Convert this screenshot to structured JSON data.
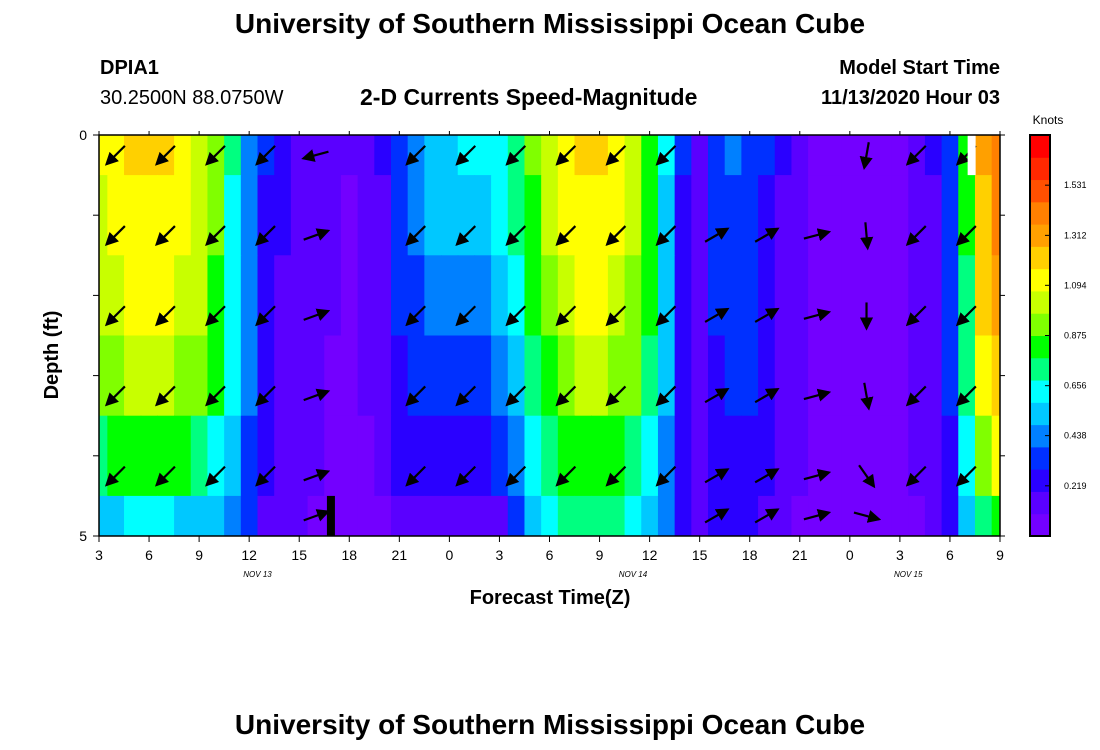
{
  "page": {
    "title_top": "University of Southern Mississippi Ocean Cube",
    "title_bottom": "University of Southern Mississippi Ocean Cube",
    "station_id": "DPIA1",
    "coordinates": "30.2500N 88.0750W",
    "subtitle": "2-D Currents Speed-Magnitude",
    "model_start_label": "Model Start Time",
    "model_start_value": "11/13/2020 Hour 03"
  },
  "chart_data": {
    "type": "heatmap",
    "title": "2-D Currents Speed-Magnitude",
    "xlabel": "Forecast Time(Z)",
    "ylabel": "Depth (ft)",
    "x_range_hours": [
      0,
      54
    ],
    "y_range_ft": [
      0,
      5
    ],
    "x_tick_labels": [
      "3",
      "6",
      "9",
      "12",
      "15",
      "18",
      "21",
      "0",
      "3",
      "6",
      "9",
      "12",
      "15",
      "18",
      "21",
      "0",
      "3",
      "6",
      "9"
    ],
    "y_tick_labels": [
      "0",
      "5"
    ],
    "date_labels": [
      {
        "label": "NOV 13",
        "hour": 9.5
      },
      {
        "label": "NOV 14",
        "hour": 32
      },
      {
        "label": "NOV 15",
        "hour": 48.5
      }
    ],
    "colorbar": {
      "unit": "Knots",
      "ticks": [
        1.531,
        1.312,
        1.094,
        0.875,
        0.656,
        0.438,
        0.219
      ],
      "min": 0,
      "max": 1.75,
      "colors": [
        "#7300ff",
        "#5a00ff",
        "#2a00ff",
        "#0030ff",
        "#0080ff",
        "#00c8ff",
        "#00ffff",
        "#00ff80",
        "#00ff00",
        "#80ff00",
        "#c8ff00",
        "#ffff00",
        "#ffd000",
        "#ffa000",
        "#ff8000",
        "#ff5000",
        "#ff2800",
        "#ff0000"
      ]
    },
    "depth_bands_ft": [
      0.0,
      0.5,
      1.5,
      2.5,
      3.5,
      4.5,
      5.0
    ],
    "time_columns_hours": [
      0,
      1,
      2,
      3,
      4,
      5,
      6,
      7,
      8,
      9,
      10,
      11,
      12,
      13,
      14,
      15,
      16,
      17,
      18,
      19,
      20,
      21,
      22,
      23,
      24,
      25,
      26,
      27,
      28,
      29,
      30,
      31,
      32,
      33,
      34,
      35,
      36,
      37,
      38,
      39,
      40,
      41,
      42,
      43,
      44,
      45,
      46,
      47,
      48,
      49,
      50,
      51,
      52,
      53,
      54
    ],
    "speed_knots": [
      [
        1.08,
        1.13,
        1.18,
        1.2,
        1.18,
        1.13,
        1.05,
        0.9,
        0.7,
        0.45,
        0.3,
        0.22,
        0.18,
        0.15,
        0.12,
        0.1,
        0.12,
        0.2,
        0.32,
        0.43,
        0.52,
        0.58,
        0.6,
        0.62,
        0.65,
        0.75,
        0.9,
        1.05,
        1.15,
        1.2,
        1.2,
        1.15,
        1.05,
        0.85,
        0.6,
        0.3,
        0.18,
        0.35,
        0.4,
        0.38,
        0.3,
        0.2,
        0.12,
        0.08,
        0.07,
        0.07,
        0.06,
        0.06,
        0.07,
        0.1,
        0.2,
        0.38,
        0.8,
        1.3,
        1.45
      ],
      [
        1.02,
        1.08,
        1.12,
        1.15,
        1.12,
        1.08,
        1.0,
        0.88,
        0.68,
        0.45,
        0.28,
        0.2,
        0.16,
        0.13,
        0.1,
        0.09,
        0.1,
        0.18,
        0.3,
        0.42,
        0.5,
        0.55,
        0.56,
        0.57,
        0.6,
        0.7,
        0.85,
        1.0,
        1.1,
        1.15,
        1.15,
        1.1,
        1.0,
        0.82,
        0.55,
        0.28,
        0.18,
        0.32,
        0.38,
        0.36,
        0.28,
        0.18,
        0.11,
        0.08,
        0.07,
        0.07,
        0.06,
        0.06,
        0.07,
        0.1,
        0.18,
        0.35,
        0.78,
        1.25,
        1.4
      ],
      [
        0.98,
        1.05,
        1.1,
        1.12,
        1.1,
        1.05,
        0.98,
        0.85,
        0.65,
        0.42,
        0.26,
        0.19,
        0.15,
        0.12,
        0.1,
        0.08,
        0.1,
        0.18,
        0.3,
        0.38,
        0.42,
        0.44,
        0.45,
        0.46,
        0.5,
        0.62,
        0.8,
        0.95,
        1.05,
        1.1,
        1.1,
        1.05,
        0.95,
        0.78,
        0.52,
        0.28,
        0.17,
        0.3,
        0.36,
        0.34,
        0.27,
        0.17,
        0.1,
        0.08,
        0.07,
        0.07,
        0.06,
        0.06,
        0.07,
        0.1,
        0.18,
        0.33,
        0.75,
        1.2,
        1.35
      ],
      [
        0.88,
        0.95,
        1.0,
        1.02,
        1.0,
        0.95,
        0.88,
        0.78,
        0.6,
        0.4,
        0.25,
        0.18,
        0.14,
        0.11,
        0.09,
        0.08,
        0.1,
        0.17,
        0.28,
        0.32,
        0.34,
        0.36,
        0.37,
        0.38,
        0.42,
        0.55,
        0.72,
        0.85,
        0.95,
        1.0,
        1.0,
        0.95,
        0.88,
        0.72,
        0.5,
        0.27,
        0.17,
        0.28,
        0.33,
        0.31,
        0.25,
        0.16,
        0.1,
        0.08,
        0.07,
        0.07,
        0.06,
        0.06,
        0.07,
        0.1,
        0.17,
        0.3,
        0.7,
        1.1,
        1.25
      ],
      [
        0.72,
        0.78,
        0.82,
        0.84,
        0.82,
        0.78,
        0.72,
        0.65,
        0.52,
        0.36,
        0.23,
        0.17,
        0.13,
        0.1,
        0.09,
        0.08,
        0.09,
        0.14,
        0.2,
        0.22,
        0.23,
        0.24,
        0.25,
        0.26,
        0.3,
        0.45,
        0.62,
        0.75,
        0.82,
        0.86,
        0.86,
        0.82,
        0.76,
        0.62,
        0.44,
        0.25,
        0.16,
        0.25,
        0.29,
        0.28,
        0.22,
        0.15,
        0.1,
        0.08,
        0.07,
        0.07,
        0.06,
        0.06,
        0.07,
        0.1,
        0.16,
        0.28,
        0.62,
        0.95,
        1.1
      ],
      [
        0.55,
        0.58,
        0.6,
        0.61,
        0.6,
        0.58,
        0.55,
        0.5,
        0.42,
        0.3,
        0.18,
        0.12,
        0.1,
        0.09,
        0.08,
        0.08,
        0.08,
        0.09,
        0.1,
        0.11,
        0.11,
        0.12,
        0.12,
        0.13,
        0.15,
        0.35,
        0.55,
        0.65,
        0.7,
        0.72,
        0.72,
        0.7,
        0.65,
        0.55,
        0.4,
        0.22,
        0.14,
        0.2,
        0.22,
        0.21,
        0.17,
        0.12,
        0.09,
        0.08,
        0.07,
        0.07,
        0.06,
        0.06,
        0.07,
        0.09,
        0.14,
        0.22,
        0.5,
        0.75,
        0.85
      ]
    ],
    "vector_depths_ft": [
      0.25,
      1.25,
      2.25,
      3.25,
      4.25,
      4.75
    ],
    "vector_hours": [
      1,
      4,
      7,
      10,
      13,
      16,
      19,
      22,
      25,
      28,
      31,
      34,
      37,
      40,
      43,
      46,
      49,
      52
    ],
    "vector_direction_deg": [
      [
        135,
        135,
        135,
        135,
        165,
        null,
        135,
        135,
        135,
        135,
        135,
        135,
        null,
        null,
        null,
        100,
        135,
        135
      ],
      [
        135,
        135,
        135,
        135,
        -20,
        null,
        135,
        135,
        135,
        135,
        135,
        135,
        -30,
        -30,
        -15,
        85,
        135,
        135
      ],
      [
        135,
        135,
        135,
        135,
        -20,
        null,
        135,
        135,
        135,
        135,
        135,
        135,
        -30,
        -30,
        -15,
        90,
        135,
        135
      ],
      [
        135,
        135,
        135,
        135,
        -20,
        null,
        135,
        135,
        135,
        135,
        135,
        135,
        -30,
        -30,
        -15,
        80,
        135,
        135
      ],
      [
        135,
        135,
        135,
        135,
        -20,
        null,
        135,
        135,
        135,
        135,
        135,
        135,
        -30,
        -30,
        -15,
        55,
        135,
        135
      ],
      [
        null,
        null,
        null,
        null,
        -20,
        null,
        null,
        null,
        null,
        null,
        null,
        null,
        -30,
        -30,
        -15,
        15,
        null,
        null
      ]
    ],
    "markers": [
      {
        "hour": 13.9,
        "depth_from_ft": 4.5,
        "depth_to_ft": 5.0,
        "color": "#000000"
      },
      {
        "hour": 52.3,
        "depth_from_ft": 0.0,
        "depth_to_ft": 0.5,
        "color": "#ffffff"
      }
    ]
  }
}
